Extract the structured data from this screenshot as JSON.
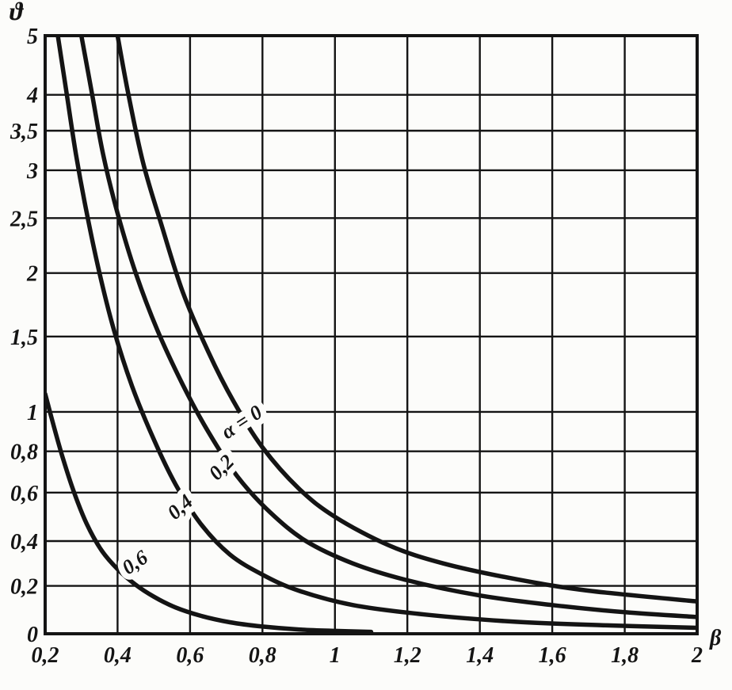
{
  "chart_data": {
    "type": "line",
    "title": "",
    "xlabel": "β",
    "ylabel": "ϑ",
    "grid": true,
    "ink_color": "#141414",
    "paper_color": "#fcfcfa",
    "x_axis": {
      "min": 0.2,
      "max": 2,
      "ticks": [
        {
          "value": 0.2,
          "label": "0,2"
        },
        {
          "value": 0.4,
          "label": "0,4"
        },
        {
          "value": 0.6,
          "label": "0,6"
        },
        {
          "value": 0.8,
          "label": "0,8"
        },
        {
          "value": 1.0,
          "label": "1"
        },
        {
          "value": 1.2,
          "label": "1,2"
        },
        {
          "value": 1.4,
          "label": "1,4"
        },
        {
          "value": 1.6,
          "label": "1,6"
        },
        {
          "value": 1.8,
          "label": "1,8"
        },
        {
          "value": 2.0,
          "label": "2"
        }
      ]
    },
    "y_axis": {
      "min": 0,
      "max": 5,
      "scale": "nonlinear-custom",
      "ticks": [
        {
          "value": 0,
          "label": "0",
          "pos": 0.0
        },
        {
          "value": 0.2,
          "label": "0,2",
          "pos": 0.08
        },
        {
          "value": 0.4,
          "label": "0,4",
          "pos": 0.155
        },
        {
          "value": 0.6,
          "label": "0,6",
          "pos": 0.236
        },
        {
          "value": 0.8,
          "label": "0,8",
          "pos": 0.305
        },
        {
          "value": 1,
          "label": "1",
          "pos": 0.371
        },
        {
          "value": 1.5,
          "label": "1,5",
          "pos": 0.497
        },
        {
          "value": 2,
          "label": "2",
          "pos": 0.603
        },
        {
          "value": 2.5,
          "label": "2,5",
          "pos": 0.695
        },
        {
          "value": 3,
          "label": "3",
          "pos": 0.775
        },
        {
          "value": 3.5,
          "label": "3,5",
          "pos": 0.841
        },
        {
          "value": 4,
          "label": "4",
          "pos": 0.901
        },
        {
          "value": 5,
          "label": "5",
          "pos": 1.0
        }
      ]
    },
    "series": [
      {
        "name": "α = 0",
        "points": [
          [
            0.4,
            5.0
          ],
          [
            0.43,
            4.0
          ],
          [
            0.47,
            3.1
          ],
          [
            0.52,
            2.45
          ],
          [
            0.58,
            1.85
          ],
          [
            0.65,
            1.4
          ],
          [
            0.72,
            1.07
          ],
          [
            0.8,
            0.82
          ],
          [
            0.9,
            0.62
          ],
          [
            1.0,
            0.5
          ],
          [
            1.15,
            0.38
          ],
          [
            1.3,
            0.3
          ],
          [
            1.5,
            0.23
          ],
          [
            1.7,
            0.18
          ],
          [
            2.0,
            0.135
          ]
        ]
      },
      {
        "name": "α = 0,2",
        "points": [
          [
            0.3,
            5.0
          ],
          [
            0.33,
            4.0
          ],
          [
            0.36,
            3.2
          ],
          [
            0.4,
            2.55
          ],
          [
            0.45,
            2.0
          ],
          [
            0.51,
            1.55
          ],
          [
            0.58,
            1.18
          ],
          [
            0.65,
            0.9
          ],
          [
            0.73,
            0.68
          ],
          [
            0.82,
            0.52
          ],
          [
            0.92,
            0.4
          ],
          [
            1.05,
            0.3
          ],
          [
            1.2,
            0.225
          ],
          [
            1.4,
            0.16
          ],
          [
            1.6,
            0.12
          ],
          [
            1.8,
            0.09
          ],
          [
            2.0,
            0.07
          ]
        ]
      },
      {
        "name": "α = 0,4",
        "points": [
          [
            0.235,
            5.0
          ],
          [
            0.26,
            4.0
          ],
          [
            0.285,
            3.2
          ],
          [
            0.315,
            2.55
          ],
          [
            0.35,
            2.0
          ],
          [
            0.39,
            1.55
          ],
          [
            0.44,
            1.17
          ],
          [
            0.5,
            0.86
          ],
          [
            0.56,
            0.64
          ],
          [
            0.63,
            0.47
          ],
          [
            0.71,
            0.34
          ],
          [
            0.8,
            0.25
          ],
          [
            0.9,
            0.18
          ],
          [
            1.05,
            0.12
          ],
          [
            1.25,
            0.08
          ],
          [
            1.5,
            0.05
          ],
          [
            1.75,
            0.035
          ],
          [
            2.0,
            0.025
          ]
        ]
      },
      {
        "name": "α = 0,6",
        "points": [
          [
            0.2,
            1.12
          ],
          [
            0.225,
            0.92
          ],
          [
            0.25,
            0.76
          ],
          [
            0.28,
            0.6
          ],
          [
            0.315,
            0.47
          ],
          [
            0.355,
            0.36
          ],
          [
            0.4,
            0.275
          ],
          [
            0.45,
            0.205
          ],
          [
            0.5,
            0.155
          ],
          [
            0.56,
            0.11
          ],
          [
            0.63,
            0.075
          ],
          [
            0.71,
            0.048
          ],
          [
            0.8,
            0.03
          ],
          [
            0.9,
            0.018
          ],
          [
            1.0,
            0.012
          ],
          [
            1.1,
            0.008
          ]
        ]
      }
    ],
    "annotations": [
      {
        "text": "α = 0",
        "x": 0.753,
        "y": 0.92,
        "rotate": -33
      },
      {
        "text": "0,2",
        "x": 0.7,
        "y": 0.7,
        "rotate": -46
      },
      {
        "text": "0,4",
        "x": 0.585,
        "y": 0.52,
        "rotate": -42
      },
      {
        "text": "0,6",
        "x": 0.458,
        "y": 0.28,
        "rotate": -34
      }
    ]
  }
}
